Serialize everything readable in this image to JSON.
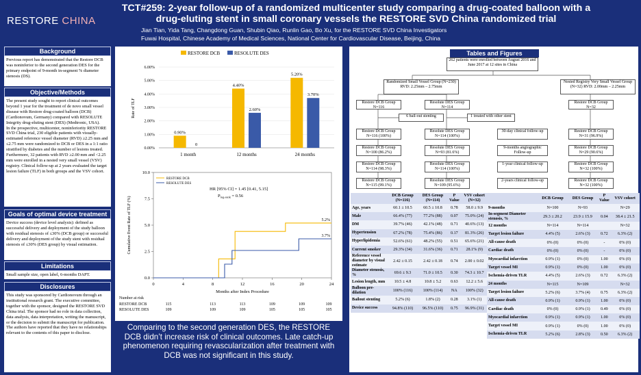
{
  "header": {
    "logo_text_white": "RESTORE ",
    "logo_text_red": "CHINA",
    "title": "TCT#259: 2-year follow-up of a randomized multicenter study comparing a drug-coated balloon with a drug-eluting stent in small coronary vessels the RESTORE SVD China randomized trial",
    "authors": "Jian Tian, Yida Tang, Changdong Guan, Shubin Qiao, Runlin Gao, Bo Xu, for the RESTORE SVD China Investigators",
    "affiliation": "Fuwai Hospital, Chinese Academy of Medical Sciences, National Center for Cardiovascular Disease, Beijing, China"
  },
  "left": {
    "background_title": "Background",
    "background_text": "Previous report has demonstrated that the Restore DCB was noninferior to the second generation DES for the primary endpoint of 9-month in-segment % diameter stenosis (DS).",
    "objective_title": "Objective/Methods",
    "objective_text1": "The present study sought to report clinical outcomes beyond 1 year for the treatment of de novo small vessel disease with Restore drug-coated balloon (DCB) (Cardionovum, Germany) compared with RESOLUTE Integrity drug-eluting stent (DES) (Medtronic, USA).",
    "objective_text2": "In the prospective, multicenter, noninferiority RESTORE SVD China trial, 230 eligible patients with visually-estimated reference vessel diameter (RVD) ≥2.25 mm and ≤2.75 mm were randomized to DCB or DES in a 1:1 ratio stratified by diabetes and the number of lesions treated. Furthermore, 32 patients with RVD ≥2.00 mm and <2.25 mm were enrolled in a nested very small vessel (VSV) registry. Clinical follow-up at 2 years evaluated the target lesion failure (TLF) in both groups and the VSV cohort.",
    "goals_title": "Goals of optimal device treatment",
    "goals_text": "Device success (device level analysis): defined as successful delivery and deployment of the study balloon with residual stenosis of ≤30% (DCB group) or successful delivery and deployment of the study stent with residual stenosis of ≤30% (DES group) by visual estimation.",
    "limitations_title": "Limitations",
    "limitations_text": "Small sample size, open label, 6-months DAPT.",
    "disclosures_title": "Disclosures",
    "disclosures_text": "This study was sponsored by Cardionovum through an institutional research grant. The executive committee, together with the sponsor, designed the RESTORE SVD China trial. The sponsor had no role in data collection, data analysis, data interpretation, writing the manuscript, or the decision to submit the manuscript for publication. The authors have reported that they have no relationships relevant to the contents of this paper to disclose."
  },
  "colors": {
    "dcb": "#f5b800",
    "des": "#3a5aa8",
    "navy": "#1a2f7a"
  },
  "chart_data": [
    {
      "type": "bar",
      "categories": [
        "1 month",
        "12 months",
        "24 months"
      ],
      "series": [
        {
          "name": "RESTORE DCB",
          "values": [
            0.9,
            4.4,
            5.2
          ]
        },
        {
          "name": "RESOLUTE DES",
          "values": [
            0.0,
            2.6,
            3.7
          ]
        }
      ],
      "value_labels": [
        [
          "0.90%",
          "4.40%",
          "5.20%"
        ],
        [
          "0",
          "2.60%",
          "3.70%"
        ]
      ],
      "ylabel": "Rate of TLF",
      "yticks": [
        "0.00%",
        "1.00%",
        "2.00%",
        "3.00%",
        "4.00%",
        "5.00%",
        "6.00%"
      ],
      "ylim": [
        0,
        6
      ],
      "legend": "top"
    },
    {
      "type": "line",
      "series": [
        {
          "name": "RESTORE DCB",
          "points": [
            [
              0,
              0
            ],
            [
              8.8,
              0
            ],
            [
              8.8,
              1.8
            ],
            [
              11,
              1.8
            ],
            [
              11,
              4.4
            ],
            [
              17.8,
              4.4
            ],
            [
              17.8,
              5.2
            ],
            [
              24,
              5.2
            ]
          ],
          "end_label": "5.2%"
        },
        {
          "name": "RESOLUTE DES",
          "points": [
            [
              0,
              0
            ],
            [
              9.6,
              0
            ],
            [
              9.6,
              1.3
            ],
            [
              10.6,
              1.3
            ],
            [
              10.6,
              2.6
            ],
            [
              19.6,
              2.6
            ],
            [
              19.6,
              3.7
            ],
            [
              24,
              3.7
            ]
          ],
          "end_label": "3.7%"
        }
      ],
      "xlabel": "Months after Index Procedure",
      "ylabel": "Cumulative Event Rate of TLF (%)",
      "xticks": [
        "0",
        "4",
        "8",
        "12",
        "16",
        "20",
        "24"
      ],
      "yticks": [
        "0.0",
        "2.5",
        "5.0",
        "7.5",
        "10.0"
      ],
      "xlim": [
        0,
        24
      ],
      "ylim": [
        0,
        10
      ],
      "annotation_hr": "HR [95% CI] = 1.45 [0.41, 5.15]",
      "annotation_p": "P",
      "annotation_p_sub": "log-rank",
      "annotation_p_val": " = 0.56",
      "at_risk_title": "Number at risk",
      "at_risk": [
        {
          "name": "RESTORE DCB",
          "values": [
            "115",
            "113",
            "113",
            "109",
            "109",
            "109"
          ]
        },
        {
          "name": "RESOLUTE DES",
          "values": [
            "109",
            "109",
            "109",
            "105",
            "105",
            "105"
          ]
        }
      ]
    }
  ],
  "conclusion": "Comparing to the second generation DES, the RESTORE DCB didn’t increase risk of clinical outcomes. Late catch-up phenomenon requiring revascularization after treatment with DCB was not significant in this study.",
  "tables_title": "Tables and Figures",
  "flow": {
    "enrolled": "262 patients were enrolled between August 2016 and June 2017 at 12 sites in China",
    "rsvg": "Randomized Small Vessel Group (N=230) RVD: 2.25mm – 2.75mm",
    "vsv": "Nested Registry Very Small Vessel Group (N=32) RVD: 2.00mm – 2.25mm",
    "dcb": "Restore DCB Group N=116",
    "des": "Resolute DES Group N=114",
    "vsvn": "Restore DCB Group N=32",
    "bailout": "6 bail-out stenting",
    "treated_other": "1 treated with other stent",
    "r1": [
      "Restore DCB Group N=116 (100%)",
      "Resolute DES Group N=114 (100%)",
      "30-day clinical follow-up",
      "Restore DCB Group N=31 (96.9%)"
    ],
    "r2": [
      "Restore DCB Group N=100 (86.2%)",
      "Resolute DES Group N=93 (81.6%)",
      "9-months angiographic Follow-up",
      "Restore DCB Group N=29 (90.6%)"
    ],
    "r3": [
      "Restore DCB Group N=114 (98.3%)",
      "Resolute DES Group N=114 (100%)",
      "1-year clinical follow-up",
      "Restore DCB Group N=32 (100%)"
    ],
    "r4": [
      "Restore DCB Group N=115 (99.1%)",
      "Resolute DES Group N=109 (95.6%)",
      "2-years clinical follow-up",
      "Restore DCB Group N=32 (100%)"
    ]
  },
  "table1": {
    "headers": [
      "",
      "DCB Group (N=116)",
      "DES Group (N=114)",
      "P Value",
      "VSV cohort (N=32)"
    ],
    "rows": [
      [
        "Age, years",
        "60.1 ± 10.5",
        "60.5 ± 10.8",
        "0.78",
        "58.0 ± 9.9"
      ],
      [
        "Male",
        "66.4% (77)",
        "77.2% (88)",
        "0.07",
        "75.0% (24)"
      ],
      [
        "DM",
        "39.7% (46)",
        "42.1% (48)",
        "0.71",
        "40.6% (13)"
      ],
      [
        "Hypertension",
        "67.2% (78)",
        "75.4% (86)",
        "0.17",
        "81.3% (26)"
      ],
      [
        "Hyperlipidemia",
        "52.6% (61)",
        "48.2% (55)",
        "0.51",
        "65.6% (21)"
      ],
      [
        "Current smoker",
        "29.3% (34)",
        "31.6% (36)",
        "0.71",
        "28.1% (9)"
      ],
      [
        "Reference vessel diameter by visual estimate",
        "2.42 ± 0.15",
        "2.42 ± 0.18",
        "0.74",
        "2.00 ± 0.02"
      ],
      [
        "Diameter stenosis, %",
        "69.6 ± 9.3",
        "71.0 ± 10.5",
        "0.30",
        "74.3 ± 10.7"
      ],
      [
        "Lesion length, mm",
        "10.5 ± 4.8",
        "10.8 ± 5.2",
        "0.63",
        "12.2 ± 5.6"
      ],
      [
        "Balloon pre-dilation",
        "100% (116)",
        "100% (114)",
        "NA",
        "100% (32)"
      ],
      [
        "Bailout stenting",
        "5.2% (6)",
        "1.8% (2)",
        "0.28",
        "3.1% (1)"
      ],
      [
        "Device success",
        "94.8% (110)",
        "96.5% (110)",
        "0.75",
        "96.9% (31)"
      ]
    ]
  },
  "table2": {
    "headers": [
      "",
      "DCB Group",
      "DES Group",
      "P Value",
      "VSV cohort"
    ],
    "rows": [
      [
        "9-months",
        "N=100",
        "N=93",
        "",
        "N=29"
      ],
      [
        "In-segment Diameter stenosis, %",
        "29.3 ± 20.2",
        "23.9 ± 15.9",
        "0.04",
        "38.4 ± 21.5"
      ],
      [
        "12 months",
        "N=114",
        "N=114",
        "",
        "N=32"
      ],
      [
        "Target lesion failure",
        "4.4% (5)",
        "2.6% (3)",
        "0.72",
        "6.3% (2)"
      ],
      [
        "All-cause death",
        "0% (0)",
        "0% (0)",
        "-",
        "0% (0)"
      ],
      [
        "Cardiac death",
        "0% (0)",
        "0% (0)",
        "-",
        "0% (0)"
      ],
      [
        "Myocardial infarction",
        "0.9% (1)",
        "0% (0)",
        "1.00",
        "0% (0)"
      ],
      [
        "Target vessel MI",
        "0.9% (1)",
        "0% (0)",
        "1.00",
        "0% (0)"
      ],
      [
        "Ischemia-driven TLR",
        "4.4% (5)",
        "2.6% (3)",
        "0.72",
        "6.3% (2)"
      ],
      [
        "24 months",
        "N=115",
        "N=109",
        "",
        "N=32"
      ],
      [
        "Target lesion failure",
        "5.2% (6)",
        "3.7% (4)",
        "0.75",
        "6.3% (2)"
      ],
      [
        "All-cause death",
        "0.9% (1)",
        "0.9% (1)",
        "1.00",
        "0% (0)"
      ],
      [
        "Cardiac death",
        "0% (0)",
        "0.9% (1)",
        "0.49",
        "0% (0)"
      ],
      [
        "Myocardial infarction",
        "0.9% (1)",
        "0.9% (1)",
        "1.00",
        "0% (0)"
      ],
      [
        "Target vessel MI",
        "0.9% (1)",
        "0% (0)",
        "1.00",
        "0% (0)"
      ],
      [
        "Ischemia-driven TLR",
        "5.2% (6)",
        "2.8% (3)",
        "0.50",
        "6.3% (2)"
      ]
    ]
  }
}
